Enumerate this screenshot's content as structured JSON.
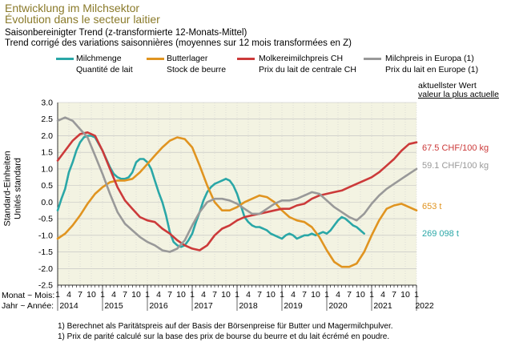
{
  "header": {
    "title_de": "Entwicklung im Milchsektor",
    "title_fr": "Évolution dans le secteur laitier",
    "subtitle_de": "Saisonbereinigter Trend (z-transformierte 12-Monats-Mittel)",
    "subtitle_fr": "Trend corrigé des variations saisonnières (moyennes sur 12 mois transformées en Z)"
  },
  "latest_label": {
    "line1": "aktuellster Wert",
    "line2": "valeur la plus actuelle"
  },
  "axis": {
    "ylabel_de": "Standard-Einheiten",
    "ylabel_fr": "Unités standard",
    "x_row1": "Monat ~ Mois:",
    "x_row2": "Jahr ~ Année:",
    "month_ticks": [
      "1",
      "4",
      "7",
      "10",
      "1",
      "4",
      "7",
      "10",
      "1",
      "4",
      "7",
      "10",
      "1",
      "4",
      "7",
      "10",
      "1",
      "4",
      "7",
      "10",
      "1",
      "4",
      "7",
      "10",
      "1",
      "4",
      "7",
      "10",
      "1",
      "4",
      "7",
      "10",
      "1"
    ],
    "years": [
      "2014",
      "2015",
      "2016",
      "2017",
      "2018",
      "2019",
      "2020",
      "2021",
      "2022"
    ]
  },
  "legend": [
    {
      "de": "Milchmenge",
      "fr": "Quantité de lait",
      "color": "#2aa7a7"
    },
    {
      "de": "Butterlager",
      "fr": "Stock de beurre",
      "color": "#e09420"
    },
    {
      "de": "Molkereimilchpreis CH",
      "fr": "Prix du lait de centrale CH",
      "color": "#cc3a3a"
    },
    {
      "de": "Milchpreis in Europa (1)",
      "fr": "Prix du lait en Europe (1)",
      "color": "#999999"
    }
  ],
  "end_labels": {
    "red": "67.5 CHF/100 kg",
    "grey": "59.1 CHF/100 kg",
    "orange": "653 t",
    "teal": "269 098 t"
  },
  "footnotes": [
    "1)  Berechnet als Paritätspreis auf der Basis der Börsenpreise für Butter und Magermilchpulver.",
    "1)  Prix de parité calculé sur la base des prix de bourse du beurre et du lait écrémé en poudre."
  ],
  "chart_data": {
    "type": "line",
    "ylim": [
      -2.5,
      3.0
    ],
    "yticks": [
      3.0,
      2.5,
      2.0,
      1.5,
      1.0,
      0.5,
      0.0,
      -0.5,
      -1.0,
      -1.5,
      -2.0,
      -2.5
    ],
    "grid": true,
    "x_unit": "month index from 2014-01 (0) to 2022-01 (96)",
    "series": [
      {
        "name": "Milchmenge",
        "color": "#2aa7a7",
        "points": [
          [
            0,
            -0.25
          ],
          [
            1,
            0.1
          ],
          [
            2,
            0.4
          ],
          [
            3,
            0.9
          ],
          [
            4,
            1.2
          ],
          [
            5,
            1.55
          ],
          [
            6,
            1.8
          ],
          [
            7,
            1.95
          ],
          [
            8,
            2.0
          ],
          [
            9,
            2.0
          ],
          [
            10,
            1.95
          ],
          [
            11,
            1.75
          ],
          [
            12,
            1.55
          ],
          [
            13,
            1.3
          ],
          [
            14,
            1.05
          ],
          [
            15,
            0.85
          ],
          [
            16,
            0.75
          ],
          [
            17,
            0.7
          ],
          [
            18,
            0.7
          ],
          [
            19,
            0.75
          ],
          [
            20,
            0.9
          ],
          [
            21,
            1.2
          ],
          [
            22,
            1.3
          ],
          [
            23,
            1.3
          ],
          [
            24,
            1.2
          ],
          [
            25,
            1.0
          ],
          [
            26,
            0.65
          ],
          [
            27,
            0.3
          ],
          [
            28,
            0.0
          ],
          [
            29,
            -0.4
          ],
          [
            30,
            -0.9
          ],
          [
            31,
            -1.2
          ],
          [
            32,
            -1.3
          ],
          [
            33,
            -1.35
          ],
          [
            34,
            -1.3
          ],
          [
            35,
            -1.15
          ],
          [
            36,
            -0.95
          ],
          [
            37,
            -0.6
          ],
          [
            38,
            -0.3
          ],
          [
            39,
            0.05
          ],
          [
            40,
            0.3
          ],
          [
            41,
            0.45
          ],
          [
            42,
            0.55
          ],
          [
            43,
            0.6
          ],
          [
            44,
            0.65
          ],
          [
            45,
            0.7
          ],
          [
            46,
            0.65
          ],
          [
            47,
            0.5
          ],
          [
            48,
            0.25
          ],
          [
            49,
            -0.1
          ],
          [
            50,
            -0.45
          ],
          [
            51,
            -0.6
          ],
          [
            52,
            -0.7
          ],
          [
            53,
            -0.75
          ],
          [
            54,
            -0.75
          ],
          [
            55,
            -0.8
          ],
          [
            56,
            -0.85
          ],
          [
            57,
            -0.95
          ],
          [
            58,
            -1.0
          ],
          [
            59,
            -1.05
          ],
          [
            60,
            -1.1
          ],
          [
            61,
            -1.0
          ],
          [
            62,
            -0.95
          ],
          [
            63,
            -1.0
          ],
          [
            64,
            -1.1
          ],
          [
            65,
            -1.05
          ],
          [
            66,
            -1.0
          ],
          [
            67,
            -1.0
          ],
          [
            68,
            -0.95
          ],
          [
            69,
            -1.0
          ],
          [
            70,
            -0.95
          ],
          [
            71,
            -0.9
          ],
          [
            72,
            -0.95
          ],
          [
            73,
            -0.85
          ],
          [
            74,
            -0.7
          ],
          [
            75,
            -0.55
          ],
          [
            76,
            -0.45
          ],
          [
            77,
            -0.5
          ],
          [
            78,
            -0.6
          ],
          [
            79,
            -0.7
          ],
          [
            80,
            -0.75
          ],
          [
            81,
            -0.85
          ],
          [
            82,
            -0.95
          ]
        ]
      },
      {
        "name": "Butterlager",
        "color": "#e09420",
        "points": [
          [
            0,
            -1.1
          ],
          [
            2,
            -0.95
          ],
          [
            4,
            -0.7
          ],
          [
            6,
            -0.4
          ],
          [
            8,
            -0.05
          ],
          [
            10,
            0.25
          ],
          [
            12,
            0.45
          ],
          [
            14,
            0.6
          ],
          [
            16,
            0.65
          ],
          [
            18,
            0.65
          ],
          [
            20,
            0.7
          ],
          [
            22,
            0.9
          ],
          [
            24,
            1.15
          ],
          [
            26,
            1.4
          ],
          [
            28,
            1.65
          ],
          [
            30,
            1.85
          ],
          [
            32,
            1.95
          ],
          [
            34,
            1.9
          ],
          [
            36,
            1.65
          ],
          [
            38,
            1.1
          ],
          [
            40,
            0.5
          ],
          [
            42,
            0.0
          ],
          [
            44,
            -0.25
          ],
          [
            46,
            -0.25
          ],
          [
            48,
            -0.15
          ],
          [
            50,
            0.0
          ],
          [
            52,
            0.1
          ],
          [
            54,
            0.2
          ],
          [
            56,
            0.15
          ],
          [
            58,
            0.0
          ],
          [
            60,
            -0.25
          ],
          [
            62,
            -0.45
          ],
          [
            64,
            -0.55
          ],
          [
            66,
            -0.6
          ],
          [
            68,
            -0.75
          ],
          [
            70,
            -1.05
          ],
          [
            72,
            -1.45
          ],
          [
            74,
            -1.8
          ],
          [
            76,
            -1.95
          ],
          [
            78,
            -1.95
          ],
          [
            80,
            -1.85
          ],
          [
            82,
            -1.5
          ],
          [
            84,
            -1.0
          ],
          [
            86,
            -0.55
          ],
          [
            88,
            -0.2
          ],
          [
            90,
            -0.1
          ],
          [
            92,
            -0.05
          ],
          [
            94,
            -0.15
          ],
          [
            96,
            -0.25
          ]
        ]
      },
      {
        "name": "Molkereimilchpreis CH",
        "color": "#cc3a3a",
        "points": [
          [
            0,
            1.25
          ],
          [
            2,
            1.55
          ],
          [
            4,
            1.85
          ],
          [
            6,
            2.05
          ],
          [
            8,
            2.1
          ],
          [
            10,
            2.0
          ],
          [
            12,
            1.55
          ],
          [
            14,
            1.0
          ],
          [
            16,
            0.45
          ],
          [
            18,
            0.05
          ],
          [
            20,
            -0.2
          ],
          [
            22,
            -0.45
          ],
          [
            24,
            -0.55
          ],
          [
            26,
            -0.6
          ],
          [
            28,
            -0.8
          ],
          [
            30,
            -0.95
          ],
          [
            32,
            -1.15
          ],
          [
            34,
            -1.3
          ],
          [
            36,
            -1.4
          ],
          [
            38,
            -1.45
          ],
          [
            40,
            -1.3
          ],
          [
            42,
            -1.0
          ],
          [
            44,
            -0.8
          ],
          [
            46,
            -0.7
          ],
          [
            48,
            -0.55
          ],
          [
            50,
            -0.45
          ],
          [
            52,
            -0.4
          ],
          [
            54,
            -0.35
          ],
          [
            56,
            -0.3
          ],
          [
            58,
            -0.25
          ],
          [
            60,
            -0.2
          ],
          [
            62,
            -0.2
          ],
          [
            64,
            -0.1
          ],
          [
            66,
            -0.05
          ],
          [
            68,
            0.1
          ],
          [
            70,
            0.2
          ],
          [
            72,
            0.25
          ],
          [
            74,
            0.3
          ],
          [
            76,
            0.35
          ],
          [
            78,
            0.45
          ],
          [
            80,
            0.55
          ],
          [
            82,
            0.65
          ],
          [
            84,
            0.75
          ],
          [
            86,
            0.9
          ],
          [
            88,
            1.1
          ],
          [
            90,
            1.3
          ],
          [
            92,
            1.55
          ],
          [
            94,
            1.75
          ],
          [
            96,
            1.8
          ]
        ]
      },
      {
        "name": "Milchpreis in Europa (1)",
        "color": "#999999",
        "points": [
          [
            0,
            2.45
          ],
          [
            2,
            2.55
          ],
          [
            4,
            2.45
          ],
          [
            6,
            2.2
          ],
          [
            8,
            1.95
          ],
          [
            10,
            1.4
          ],
          [
            12,
            0.85
          ],
          [
            14,
            0.25
          ],
          [
            16,
            -0.3
          ],
          [
            18,
            -0.65
          ],
          [
            20,
            -0.85
          ],
          [
            22,
            -1.05
          ],
          [
            24,
            -1.2
          ],
          [
            26,
            -1.3
          ],
          [
            28,
            -1.45
          ],
          [
            30,
            -1.5
          ],
          [
            32,
            -1.4
          ],
          [
            34,
            -1.15
          ],
          [
            36,
            -0.7
          ],
          [
            38,
            -0.3
          ],
          [
            40,
            0.0
          ],
          [
            42,
            0.1
          ],
          [
            44,
            0.1
          ],
          [
            46,
            0.05
          ],
          [
            48,
            -0.05
          ],
          [
            50,
            -0.2
          ],
          [
            52,
            -0.35
          ],
          [
            54,
            -0.35
          ],
          [
            56,
            -0.2
          ],
          [
            58,
            -0.05
          ],
          [
            60,
            0.05
          ],
          [
            62,
            0.05
          ],
          [
            64,
            0.1
          ],
          [
            66,
            0.2
          ],
          [
            68,
            0.3
          ],
          [
            70,
            0.25
          ],
          [
            72,
            0.05
          ],
          [
            74,
            -0.15
          ],
          [
            76,
            -0.3
          ],
          [
            78,
            -0.45
          ],
          [
            80,
            -0.55
          ],
          [
            82,
            -0.35
          ],
          [
            84,
            -0.05
          ],
          [
            86,
            0.2
          ],
          [
            88,
            0.4
          ],
          [
            90,
            0.55
          ],
          [
            92,
            0.7
          ],
          [
            94,
            0.85
          ],
          [
            96,
            1.0
          ]
        ]
      }
    ]
  }
}
